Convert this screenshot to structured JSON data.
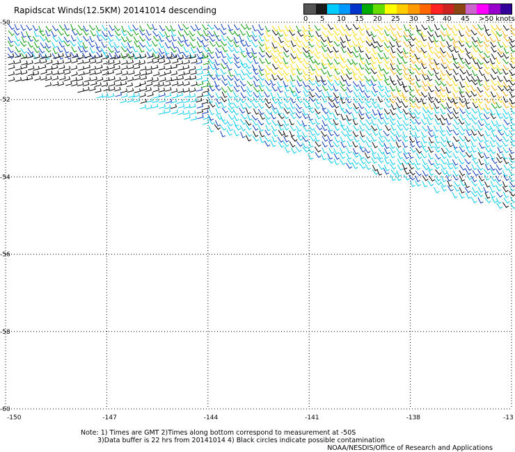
{
  "title": "Rapidscat Winds(12.5KM) 20141014 descending",
  "colorbar": {
    "colors": [
      "#555555",
      "#1a1a1a",
      "#00ccff",
      "#0099ff",
      "#0033cc",
      "#00aa00",
      "#66dd00",
      "#ffff00",
      "#ffcc00",
      "#ff9900",
      "#ff6600",
      "#ff2222",
      "#cc2222",
      "#8b4513",
      "#cc66cc",
      "#ff00ff",
      "#9900cc",
      "#330099"
    ],
    "labels": [
      "0",
      "5",
      "10",
      "15",
      "20",
      "25",
      "30",
      "35",
      "40",
      "45",
      ">50 knots"
    ]
  },
  "axes": {
    "x_ticks": [
      "-150",
      "-147",
      "-144",
      "-141",
      "-138",
      "-13"
    ],
    "y_ticks": [
      "-50",
      "-52",
      "-54",
      "-56",
      "-58",
      "-60"
    ],
    "lon_range": [
      -150,
      -135
    ],
    "lat_range": [
      -60,
      -50
    ]
  },
  "notes": {
    "line1": "Note: 1) Times are GMT 2)Times along bottom correspond to measurement at -50S",
    "line2": "3)Data buffer is 22 hrs from 20141014 4) Black circles indicate possible contamination"
  },
  "credit": "NOAA/NESDIS/Office of Research and Applications",
  "wind_colors": [
    "#00ccee",
    "#0033bb",
    "#009900",
    "#000000",
    "#ffdd00",
    "#ffaa00"
  ]
}
